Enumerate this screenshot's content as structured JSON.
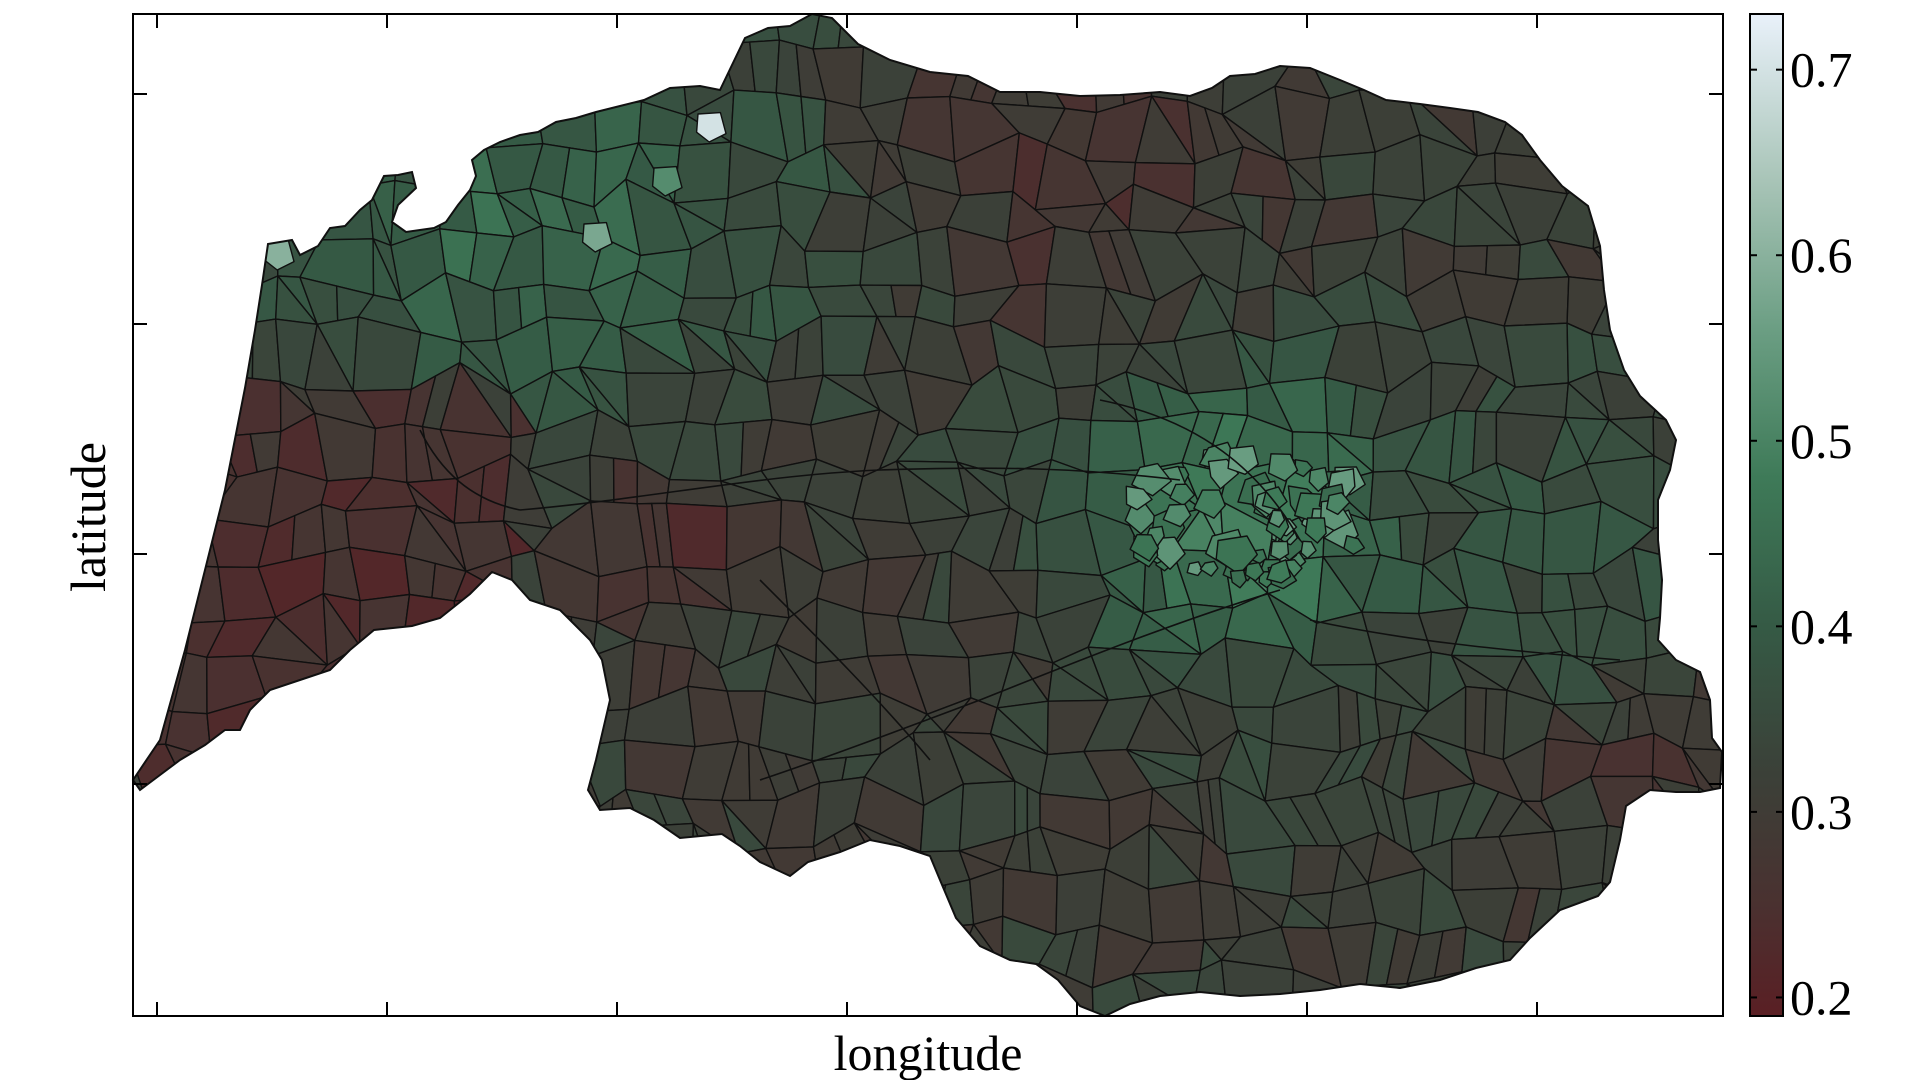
{
  "chart_data": {
    "type": "choropleth",
    "xlabel": "longitude",
    "ylabel": "latitude",
    "colorbar": {
      "ticks": [
        "0.2",
        "0.3",
        "0.4",
        "0.5",
        "0.6",
        "0.7"
      ],
      "range": [
        0.19,
        0.73
      ],
      "stops": [
        {
          "value": 0.19,
          "color": "#5a1f24"
        },
        {
          "value": 0.25,
          "color": "#4a3130"
        },
        {
          "value": 0.32,
          "color": "#3b4038"
        },
        {
          "value": 0.4,
          "color": "#355a45"
        },
        {
          "value": 0.48,
          "color": "#3e7a58"
        },
        {
          "value": 0.56,
          "color": "#6b9e83"
        },
        {
          "value": 0.64,
          "color": "#a8c4b7"
        },
        {
          "value": 0.73,
          "color": "#e9f1fa"
        }
      ]
    },
    "x_axis": {
      "tick_count": 7,
      "tick_labels_shown": false
    },
    "y_axis": {
      "tick_count": 4,
      "tick_labels_shown": false
    },
    "regions_shown": "municipalities of one state, shaded by value",
    "value_pattern": {
      "high": "central capital cluster and north-west coastal strip (about 0.45-0.55); a few small northern units near 0.6-0.7",
      "low": "western coastal strips and southern interior (about 0.2-0.28)",
      "typical": "about 0.3-0.35"
    }
  }
}
